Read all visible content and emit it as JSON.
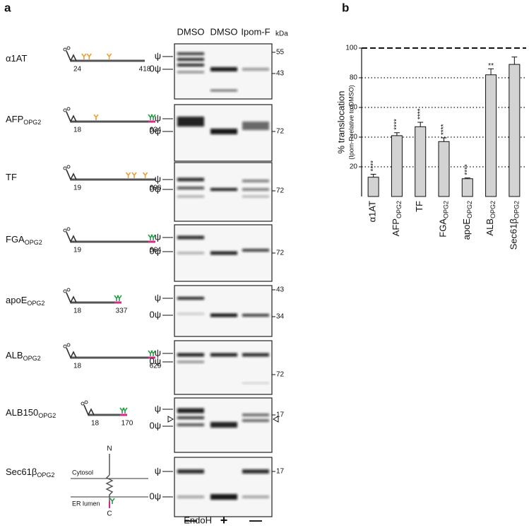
{
  "panel_a": {
    "label": "a",
    "lanes": [
      "DMSO",
      "DMSO",
      "Ipom-F"
    ],
    "kda_label": "kDa",
    "psi_label": "ψ",
    "zero_psi_label": "0ψ",
    "rows": [
      {
        "name": "α1AT",
        "start": "24",
        "end": "418",
        "markers": [
          "55",
          "43"
        ]
      },
      {
        "name": "AFP",
        "sub": "OPG2",
        "start": "18",
        "end": "634",
        "markers": [
          "72"
        ]
      },
      {
        "name": "TF",
        "start": "19",
        "end": "698",
        "markers": [
          "72"
        ]
      },
      {
        "name": "FGA",
        "sub": "OPG2",
        "start": "19",
        "end": "664",
        "markers": [
          "72"
        ]
      },
      {
        "name": "apoE",
        "sub": "OPG2",
        "start": "18",
        "end": "337",
        "markers": [
          "43",
          "34"
        ]
      },
      {
        "name": "ALB",
        "sub": "OPG2",
        "start": "18",
        "end": "629",
        "markers": [
          "72"
        ]
      },
      {
        "name": "ALB150",
        "sub": "OPG2",
        "start": "18",
        "end": "170",
        "markers": [
          "17"
        ]
      },
      {
        "name": "Sec61β",
        "sub": "OPG2",
        "markers": [
          "17"
        ],
        "topology": {
          "n": "N",
          "c": "C",
          "cytosol": "Cytosol",
          "lumen": "ER lumen"
        }
      }
    ],
    "endoh": {
      "label": "EndoH",
      "treatments": [
        "—",
        "+",
        "—"
      ]
    }
  },
  "chart_data": {
    "type": "bar",
    "panel_label": "b",
    "ylabel": "% translocation",
    "ylabel_sub": "(Ipom-F relative to DMSO)",
    "categories": [
      {
        "name": "α1AT"
      },
      {
        "name": "AFP",
        "sub": "OPG2"
      },
      {
        "name": "TF"
      },
      {
        "name": "FGA",
        "sub": "OPG2"
      },
      {
        "name": "apoE",
        "sub": "OPG2"
      },
      {
        "name": "ALB",
        "sub": "OPG2"
      },
      {
        "name": "Sec61β",
        "sub": "OPG2"
      }
    ],
    "values": [
      13,
      41,
      47,
      37,
      12,
      82,
      89
    ],
    "errors": [
      2,
      2,
      3,
      2.5,
      0.5,
      4,
      5
    ],
    "annotations": [
      "****",
      "****",
      "****",
      "****",
      "****",
      "**",
      null
    ],
    "color": "#d3d3d3",
    "ylim": [
      0,
      100
    ],
    "yticks": [
      20,
      40,
      60,
      80,
      100
    ],
    "grid": true
  }
}
